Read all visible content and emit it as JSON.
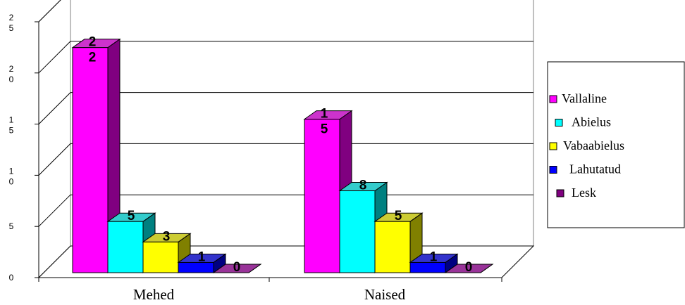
{
  "chart_data": {
    "type": "bar",
    "categories": [
      "Mehed",
      "Naised"
    ],
    "series": [
      {
        "name": "Vallaline",
        "values": [
          22,
          15
        ],
        "color": "#ff00ff",
        "side": "#800080",
        "top": "#cc33cc"
      },
      {
        "name": "Abielus",
        "values": [
          5,
          8
        ],
        "color": "#00ffff",
        "side": "#008080",
        "top": "#33cccc"
      },
      {
        "name": "Vabaabielus",
        "values": [
          3,
          5
        ],
        "color": "#ffff00",
        "side": "#808000",
        "top": "#cccc33"
      },
      {
        "name": "Lahutatud",
        "values": [
          1,
          1
        ],
        "color": "#0000ff",
        "side": "#000080",
        "top": "#3333cc"
      },
      {
        "name": "Lesk",
        "values": [
          0,
          0
        ],
        "color": "#800080",
        "side": "#400040",
        "top": "#993399"
      }
    ],
    "y_tick_labels": [
      [
        "0"
      ],
      [
        "5"
      ],
      [
        "1",
        "0"
      ],
      [
        "1",
        "5"
      ],
      [
        "2",
        "0"
      ],
      [
        "2",
        "5"
      ]
    ],
    "ylim": [
      0,
      25
    ],
    "grid": true,
    "legend_position": "right",
    "title": "",
    "xlabel": "",
    "ylabel": ""
  }
}
